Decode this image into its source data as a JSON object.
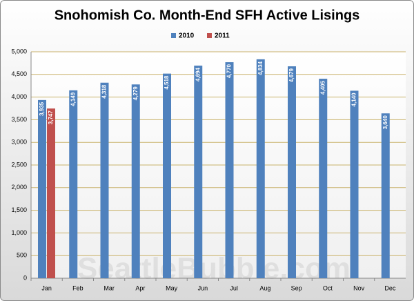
{
  "chart_data": {
    "type": "bar",
    "title": "Snohomish Co. Month-End SFH Active Lisings",
    "categories": [
      "Jan",
      "Feb",
      "Mar",
      "Apr",
      "May",
      "Jun",
      "Jul",
      "Aug",
      "Sep",
      "Oct",
      "Nov",
      "Dec"
    ],
    "series": [
      {
        "name": "2010",
        "color": "#4f81bd",
        "values": [
          3935,
          4149,
          4318,
          4279,
          4518,
          4694,
          4770,
          4834,
          4679,
          4405,
          4140,
          3640
        ],
        "value_labels": [
          "3,935",
          "4,149",
          "4,318",
          "4,279",
          "4,518",
          "4,694",
          "4,770",
          "4,834",
          "4,679",
          "4,405",
          "4,140",
          "3,640"
        ]
      },
      {
        "name": "2011",
        "color": "#c0504d",
        "values": [
          3747,
          null,
          null,
          null,
          null,
          null,
          null,
          null,
          null,
          null,
          null,
          null
        ],
        "value_labels": [
          "3,747",
          null,
          null,
          null,
          null,
          null,
          null,
          null,
          null,
          null,
          null,
          null
        ]
      }
    ],
    "ylim": [
      0,
      5000
    ],
    "yticks": [
      0,
      500,
      {
        "value": 1000,
        "label": "1,000"
      },
      {
        "value": 1500,
        "label": "1,500"
      },
      {
        "value": 2000,
        "label": "2,000"
      },
      {
        "value": 2500,
        "label": "2,500"
      },
      {
        "value": 3000,
        "label": "3,000"
      },
      {
        "value": 3500,
        "label": "3,500"
      },
      {
        "value": 4000,
        "label": "4,000"
      },
      {
        "value": 4500,
        "label": "4,500"
      },
      {
        "value": 5000,
        "label": "5,000"
      }
    ],
    "grid": true,
    "legend": "top",
    "watermark": "SeattleBubble.com"
  }
}
